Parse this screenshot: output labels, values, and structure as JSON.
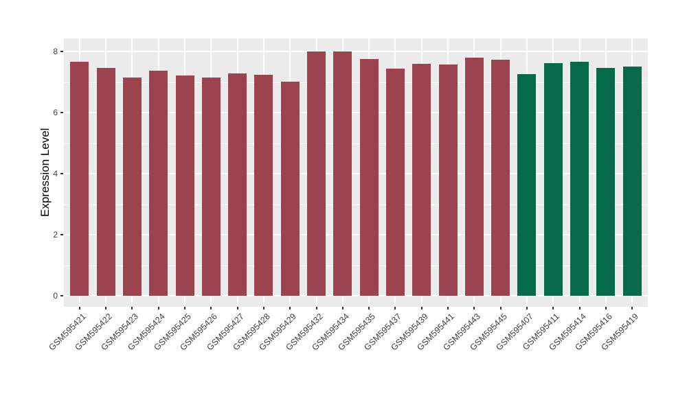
{
  "chart_data": {
    "type": "bar",
    "title": "",
    "xlabel": "",
    "ylabel": "Expression Level",
    "ylim": [
      0,
      8.4
    ],
    "yticks_major": [
      0,
      2,
      4,
      6,
      8
    ],
    "yticks_minor": [
      1,
      3,
      5,
      7
    ],
    "grid": true,
    "legend_position": "none",
    "panel_bg": "#EBEBEB",
    "grid_color": "#FFFFFF",
    "axis_text_color": "#404040",
    "group_colors": {
      "maroon": "#9B4450",
      "green": "#056A4A"
    },
    "categories": [
      "GSM595421",
      "GSM595422",
      "GSM595423",
      "GSM595424",
      "GSM595425",
      "GSM595426",
      "GSM595427",
      "GSM595428",
      "GSM595429",
      "GSM595432",
      "GSM595434",
      "GSM595435",
      "GSM595437",
      "GSM595439",
      "GSM595441",
      "GSM595443",
      "GSM595445",
      "GSM595407",
      "GSM595411",
      "GSM595414",
      "GSM595416",
      "GSM595419"
    ],
    "values": [
      7.66,
      7.45,
      7.14,
      7.38,
      7.22,
      7.14,
      7.27,
      7.24,
      7.01,
      8.0,
      8.01,
      7.76,
      7.43,
      7.6,
      7.57,
      7.8,
      7.73,
      7.26,
      7.62,
      7.66,
      7.46,
      7.51
    ],
    "groups": [
      "maroon",
      "maroon",
      "maroon",
      "maroon",
      "maroon",
      "maroon",
      "maroon",
      "maroon",
      "maroon",
      "maroon",
      "maroon",
      "maroon",
      "maroon",
      "maroon",
      "maroon",
      "maroon",
      "maroon",
      "green",
      "green",
      "green",
      "green",
      "green"
    ]
  }
}
